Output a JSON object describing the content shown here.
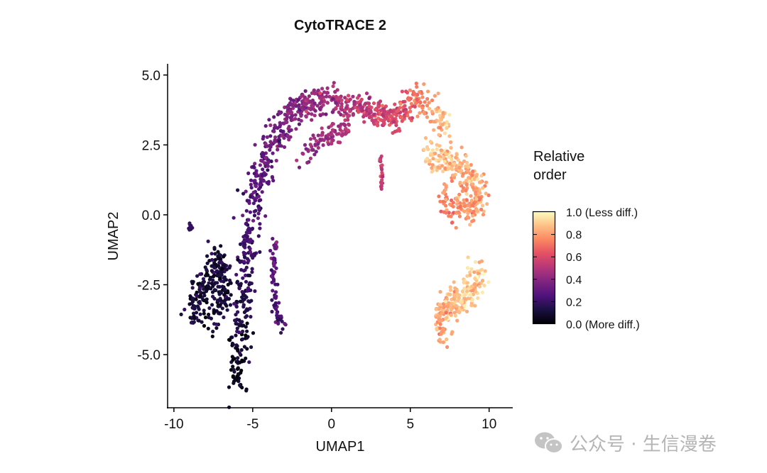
{
  "chart_data": {
    "type": "scatter",
    "title": "CytoTRACE 2",
    "xlabel": "UMAP1",
    "ylabel": "UMAP2",
    "xlim": [
      -10.4,
      11.5
    ],
    "ylim": [
      -6.9,
      5.4
    ],
    "xticks": [
      -10,
      -5,
      0,
      5,
      10
    ],
    "xtick_labels": [
      "-10",
      "-5",
      "0",
      "5",
      "10"
    ],
    "yticks": [
      5.0,
      2.5,
      0.0,
      -2.5,
      -5.0
    ],
    "ytick_labels": [
      "5.0",
      "2.5",
      "0.0",
      "-2.5",
      "-5.0"
    ],
    "grid": false,
    "colorbar": {
      "title": [
        "Relative",
        "order"
      ],
      "colormap": "magma",
      "range": [
        0,
        1
      ],
      "ticks": [
        1.0,
        0.8,
        0.6,
        0.4,
        0.2,
        0.0
      ],
      "tick_labels": [
        "1.0 (Less diff.)",
        "0.8",
        "0.6",
        "0.4",
        "0.2",
        "0.0 (More diff.)"
      ],
      "placement": "right"
    },
    "clusters_note": "points summarized as clusters along paths (UMAP units) with value = relative order",
    "clusters": [
      {
        "name": "main-arc-lower",
        "path": [
          [
            -6.1,
            -6.1
          ],
          [
            -5.8,
            -4.5
          ],
          [
            -5.6,
            -2.5
          ],
          [
            -5.2,
            -0.5
          ],
          [
            -4.6,
            1.2
          ],
          [
            -3.7,
            2.6
          ],
          [
            -2.6,
            3.6
          ]
        ],
        "spread": 0.55,
        "n": 420,
        "value": [
          0.05,
          0.38
        ]
      },
      {
        "name": "main-arc-top",
        "path": [
          [
            -2.6,
            3.6
          ],
          [
            -1.5,
            4.0
          ],
          [
            0.0,
            4.1
          ],
          [
            1.5,
            3.9
          ],
          [
            3.0,
            3.6
          ],
          [
            4.2,
            3.5
          ]
        ],
        "spread": 0.42,
        "n": 330,
        "value": [
          0.38,
          0.6
        ]
      },
      {
        "name": "arc-branch",
        "path": [
          [
            -1.8,
            2.2
          ],
          [
            -0.5,
            2.8
          ],
          [
            1.0,
            3.2
          ]
        ],
        "spread": 0.35,
        "n": 90,
        "value": [
          0.4,
          0.5
        ]
      },
      {
        "name": "right-neck",
        "path": [
          [
            4.2,
            3.5
          ],
          [
            5.3,
            4.2
          ],
          [
            6.3,
            3.8
          ],
          [
            7.3,
            3.0
          ]
        ],
        "spread": 0.4,
        "n": 130,
        "value": [
          0.6,
          0.88
        ]
      },
      {
        "name": "right-lobe",
        "path": [
          [
            6.0,
            2.3
          ],
          [
            7.2,
            1.9
          ],
          [
            8.4,
            1.6
          ],
          [
            9.3,
            1.0
          ],
          [
            9.3,
            0.2
          ],
          [
            8.1,
            0.4
          ],
          [
            7.2,
            0.3
          ]
        ],
        "spread": 0.5,
        "n": 300,
        "value": [
          0.9,
          0.75
        ]
      },
      {
        "name": "left-blob",
        "path": [
          [
            -8.9,
            -3.6
          ],
          [
            -8.0,
            -2.5
          ],
          [
            -7.2,
            -1.5
          ],
          [
            -6.8,
            -2.8
          ],
          [
            -7.6,
            -3.7
          ]
        ],
        "spread": 0.55,
        "n": 260,
        "value": [
          0.1,
          0.12
        ]
      },
      {
        "name": "left-tip",
        "path": [
          [
            -9.0,
            -0.3
          ],
          [
            -8.9,
            -0.6
          ]
        ],
        "spread": 0.1,
        "n": 12,
        "value": [
          0.15,
          0.15
        ]
      },
      {
        "name": "mid-stripe",
        "path": [
          [
            -3.6,
            -0.9
          ],
          [
            -3.7,
            -2.2
          ],
          [
            -3.6,
            -3.3
          ],
          [
            -3.2,
            -3.9
          ],
          [
            -2.9,
            -4.0
          ]
        ],
        "spread": 0.2,
        "n": 70,
        "value": [
          0.3,
          0.22
        ]
      },
      {
        "name": "thin-stripe",
        "path": [
          [
            3.05,
            2.2
          ],
          [
            3.2,
            1.5
          ],
          [
            3.15,
            0.9
          ]
        ],
        "spread": 0.07,
        "n": 22,
        "value": [
          0.55,
          0.55
        ]
      },
      {
        "name": "bottom-right-blob",
        "path": [
          [
            7.0,
            -4.5
          ],
          [
            6.9,
            -3.5
          ],
          [
            7.5,
            -3.0
          ],
          [
            8.3,
            -3.2
          ],
          [
            9.0,
            -2.5
          ],
          [
            9.4,
            -2.1
          ]
        ],
        "spread": 0.45,
        "n": 230,
        "value": [
          0.8,
          0.92
        ]
      }
    ]
  },
  "watermark": {
    "text": "公众号 · 生信漫卷"
  }
}
